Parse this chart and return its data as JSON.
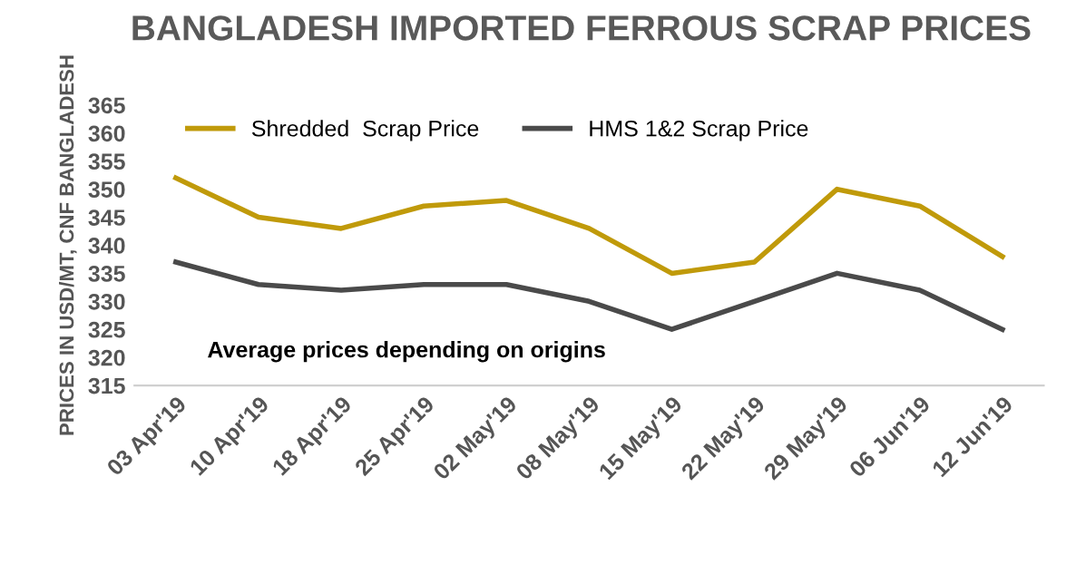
{
  "chart_data": {
    "type": "line",
    "title": "BANGLADESH IMPORTED FERROUS SCRAP PRICES",
    "ylabel": "PRICES IN USD/MT, CNF BANGLADESH",
    "categories": [
      "03 Apr'19",
      "10 Apr'19",
      "18 Apr'19",
      "25 Apr'19",
      "02 May'19",
      "08 May'19",
      "15 May'19",
      "22 May'19",
      "29 May'19",
      "06 Jun'19",
      "12 Jun'19"
    ],
    "series": [
      {
        "name": "Shredded  Scrap Price",
        "color": "#c09a0a",
        "values": [
          352,
          345,
          343,
          347,
          348,
          343,
          335,
          337,
          350,
          347,
          338
        ]
      },
      {
        "name": "HMS 1&2 Scrap Price",
        "color": "#4a4a4a",
        "values": [
          337,
          333,
          332,
          333,
          333,
          330,
          325,
          330,
          335,
          332,
          325
        ]
      }
    ],
    "annotations": [
      "Average prices depending on origins"
    ],
    "ylim": [
      315,
      365
    ],
    "yticks": [
      315,
      320,
      325,
      330,
      335,
      340,
      345,
      350,
      355,
      360,
      365
    ],
    "grid": false,
    "legend": "top",
    "marker": "none",
    "line_style": "solid"
  }
}
